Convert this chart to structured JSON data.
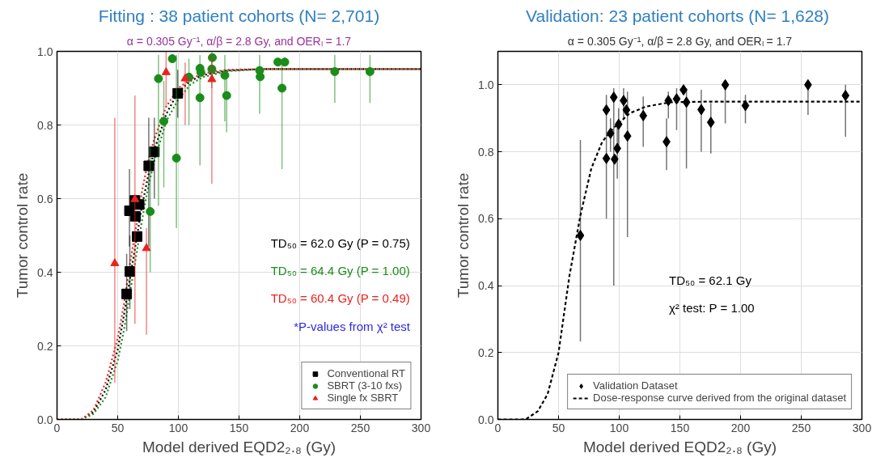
{
  "chart_data": [
    {
      "type": "scatter",
      "title": "Fitting : 38 patient cohorts (N= 2,701)",
      "subtitle": "α = 0.305 Gy⁻¹, α/β = 2.8 Gy, and OERₗ = 1.7",
      "xlabel": "Model derived EQD2₂.₈ (Gy)",
      "ylabel": "Tumor control rate",
      "xlim": [
        0,
        300
      ],
      "xticks": [
        0,
        50,
        100,
        150,
        200,
        250,
        300
      ],
      "ylim": [
        0,
        1.0
      ],
      "yticks": [
        {
          "value": 0,
          "label": "0.0"
        },
        {
          "value": 0.2,
          "label": "0.2"
        },
        {
          "value": 0.4,
          "label": "0.4"
        },
        {
          "value": 0.6,
          "label": "0.6"
        },
        {
          "value": 0.8,
          "label": "0.8"
        },
        {
          "value": 1.0,
          "label": "1.0"
        }
      ],
      "grid": true,
      "legend": "bottom right",
      "annotations": [
        "TD₅₀ = 62.0 Gy (P = 0.75)",
        "TD₅₀ = 64.4 Gy (P = 1.00)",
        "TD₅₀ = 60.4 Gy (P = 0.49)",
        "*P-values from χ² test"
      ],
      "series": [
        {
          "name": "Conventional RT",
          "color": "#000000",
          "marker": "square",
          "x": [
            57.4,
            59.7,
            60,
            64.2,
            64.6,
            66,
            67.7,
            75.6,
            80.2,
            99.5
          ],
          "values": [
            0.341,
            0.567,
            0.402,
            0.595,
            0.552,
            0.497,
            0.584,
            0.689,
            0.727,
            0.886
          ],
          "errors": [
            [
              0.24,
              0.45
            ],
            [
              0.47,
              0.68
            ],
            [
              0.3,
              0.5
            ],
            null,
            null,
            null,
            null,
            [
              0.47,
              0.82
            ],
            [
              0.6,
              0.82
            ],
            [
              0.82,
              0.95
            ]
          ]
        },
        {
          "name": "SBRT (3-10 fxs)",
          "color": "#1a8c1a",
          "marker": "circle",
          "x": [
            76.8,
            83.6,
            88,
            95,
            98.4,
            108.7,
            117.8,
            117.8,
            118.5,
            127.6,
            128,
            138.3,
            139.8,
            167,
            167.4,
            182,
            185.4,
            187.7,
            228.9,
            257.9
          ],
          "values": [
            0.565,
            0.926,
            0.81,
            0.98,
            0.71,
            0.93,
            0.954,
            0.874,
            0.943,
            0.952,
            0.983,
            0.935,
            0.88,
            0.948,
            0.931,
            0.971,
            0.9,
            0.971,
            0.945,
            0.945
          ],
          "errors": [
            [
              0.4,
              0.74
            ],
            [
              0.58,
              0.99
            ],
            [
              0.63,
              0.92
            ],
            null,
            [
              0.52,
              0.99
            ],
            [
              0.8,
              0.98
            ],
            [
              0.69,
              0.99
            ],
            null,
            null,
            [
              0.9,
              1.0
            ],
            null,
            [
              0.81,
              0.99
            ],
            [
              0.78,
              0.94
            ],
            [
              0.83,
              0.99
            ],
            null,
            null,
            [
              0.68,
              0.97
            ],
            null,
            [
              0.86,
              0.99
            ],
            [
              0.86,
              0.99
            ]
          ]
        },
        {
          "name": "Single fx SBRT",
          "color": "#e8231f",
          "marker": "triangle",
          "x": [
            47.6,
            64.2,
            73.7,
            89.9,
            105.6,
            127.6
          ],
          "values": [
            0.424,
            0.598,
            0.465,
            0.943,
            0.926,
            0.924
          ],
          "errors": [
            [
              0.1,
              0.82
            ],
            [
              0.26,
              0.88
            ],
            [
              0.23,
              0.52
            ],
            [
              0.85,
              1.0
            ],
            [
              0.8,
              0.97
            ],
            [
              0.64,
              0.99
            ]
          ]
        },
        {
          "type": "line",
          "color": "#000000",
          "line_style": "dotted",
          "x": [
            0,
            20,
            30,
            40,
            50,
            55,
            60,
            65,
            70,
            75,
            80,
            90,
            100,
            110,
            120,
            140,
            170,
            200,
            250,
            300
          ],
          "values": [
            0,
            0,
            0.02,
            0.08,
            0.19,
            0.28,
            0.38,
            0.48,
            0.58,
            0.66,
            0.73,
            0.83,
            0.89,
            0.92,
            0.935,
            0.948,
            0.952,
            0.952,
            0.952,
            0.952
          ]
        },
        {
          "type": "line",
          "color": "#1a8c1a",
          "line_style": "dotted",
          "x": [
            0,
            20,
            30,
            40,
            50,
            55,
            60,
            65,
            70,
            75,
            80,
            90,
            100,
            110,
            120,
            140,
            170,
            200,
            250,
            300
          ],
          "values": [
            0,
            0,
            0.015,
            0.06,
            0.16,
            0.24,
            0.34,
            0.44,
            0.54,
            0.63,
            0.7,
            0.81,
            0.87,
            0.91,
            0.93,
            0.946,
            0.952,
            0.952,
            0.952,
            0.952
          ]
        },
        {
          "type": "line",
          "color": "#e8231f",
          "line_style": "dotted",
          "x": [
            0,
            20,
            30,
            40,
            50,
            55,
            60,
            65,
            70,
            75,
            80,
            90,
            100,
            110,
            120,
            140,
            170,
            200,
            250,
            300
          ],
          "values": [
            0,
            0,
            0.025,
            0.1,
            0.22,
            0.31,
            0.42,
            0.52,
            0.62,
            0.7,
            0.76,
            0.85,
            0.9,
            0.925,
            0.94,
            0.95,
            0.952,
            0.952,
            0.952,
            0.952
          ]
        }
      ]
    },
    {
      "type": "scatter",
      "title": "Validation:  23 patient cohorts (N= 1,628)",
      "subtitle": "α = 0.305 Gy⁻¹, α/β = 2.8 Gy, and OERₗ = 1.7",
      "xlabel": "Model derived EQD2₂.₈ (Gy)",
      "ylabel": "Tumor control rate",
      "xlim": [
        0,
        300
      ],
      "xticks": [
        0,
        50,
        100,
        150,
        200,
        250,
        300
      ],
      "ylim": [
        0,
        1.1
      ],
      "yticks": [
        {
          "value": 0,
          "label": "0.0"
        },
        {
          "value": 0.2,
          "label": "0.2"
        },
        {
          "value": 0.4,
          "label": "0.4"
        },
        {
          "value": 0.6,
          "label": "0.6"
        },
        {
          "value": 0.8,
          "label": "0.8"
        },
        {
          "value": 1.0,
          "label": "1.0"
        }
      ],
      "grid": true,
      "legend": "bottom right",
      "annotations": [
        "TD₅₀ = 62.1 Gy",
        "χ² test: P = 1.00"
      ],
      "series": [
        {
          "name": "Validation Dataset",
          "color": "#000000",
          "marker": "diamond",
          "x": [
            68,
            89.4,
            89.4,
            92.8,
            95.5,
            96.2,
            98.4,
            99.5,
            103.6,
            105.9,
            106.8,
            119.8,
            139,
            140.5,
            147.3,
            153,
            155.4,
            167.6,
            175.5,
            187.4,
            204,
            255.6,
            286.5
          ],
          "values": [
            0.55,
            0.925,
            0.78,
            0.855,
            0.963,
            0.778,
            0.81,
            0.882,
            0.953,
            0.925,
            0.847,
            0.908,
            0.83,
            0.953,
            0.958,
            0.985,
            0.948,
            0.926,
            0.888,
            1.0,
            0.938,
            1.0,
            0.968
          ],
          "errors": [
            [
              0.233,
              0.835
            ],
            [
              0.6,
              0.97
            ],
            null,
            [
              0.8,
              0.9
            ],
            [
              0.4,
              0.99
            ],
            null,
            [
              0.72,
              0.88
            ],
            [
              0.82,
              0.93
            ],
            [
              0.9,
              0.99
            ],
            null,
            [
              0.545,
              0.98
            ],
            [
              0.815,
              0.965
            ],
            [
              0.745,
              0.9
            ],
            [
              0.9,
              0.98
            ],
            [
              0.865,
              0.99
            ],
            null,
            [
              0.75,
              0.99
            ],
            [
              0.8,
              0.985
            ],
            [
              0.795,
              0.945
            ],
            [
              0.885,
              1.0
            ],
            [
              0.885,
              0.97
            ],
            [
              0.91,
              1.0
            ],
            [
              0.845,
              1.0
            ]
          ]
        },
        {
          "name": "Dose-response curve derived from the original dataset",
          "type": "line",
          "color": "#000000",
          "line_style": "dashed",
          "x": [
            0,
            20,
            24,
            33,
            41,
            50,
            59,
            68,
            77,
            86,
            95,
            108.6,
            122,
            142,
            176,
            289,
            300
          ],
          "values": [
            0,
            0,
            0.003,
            0.025,
            0.076,
            0.2,
            0.43,
            0.61,
            0.75,
            0.83,
            0.87,
            0.915,
            0.935,
            0.948,
            0.95,
            0.95,
            0.95
          ]
        }
      ]
    }
  ]
}
